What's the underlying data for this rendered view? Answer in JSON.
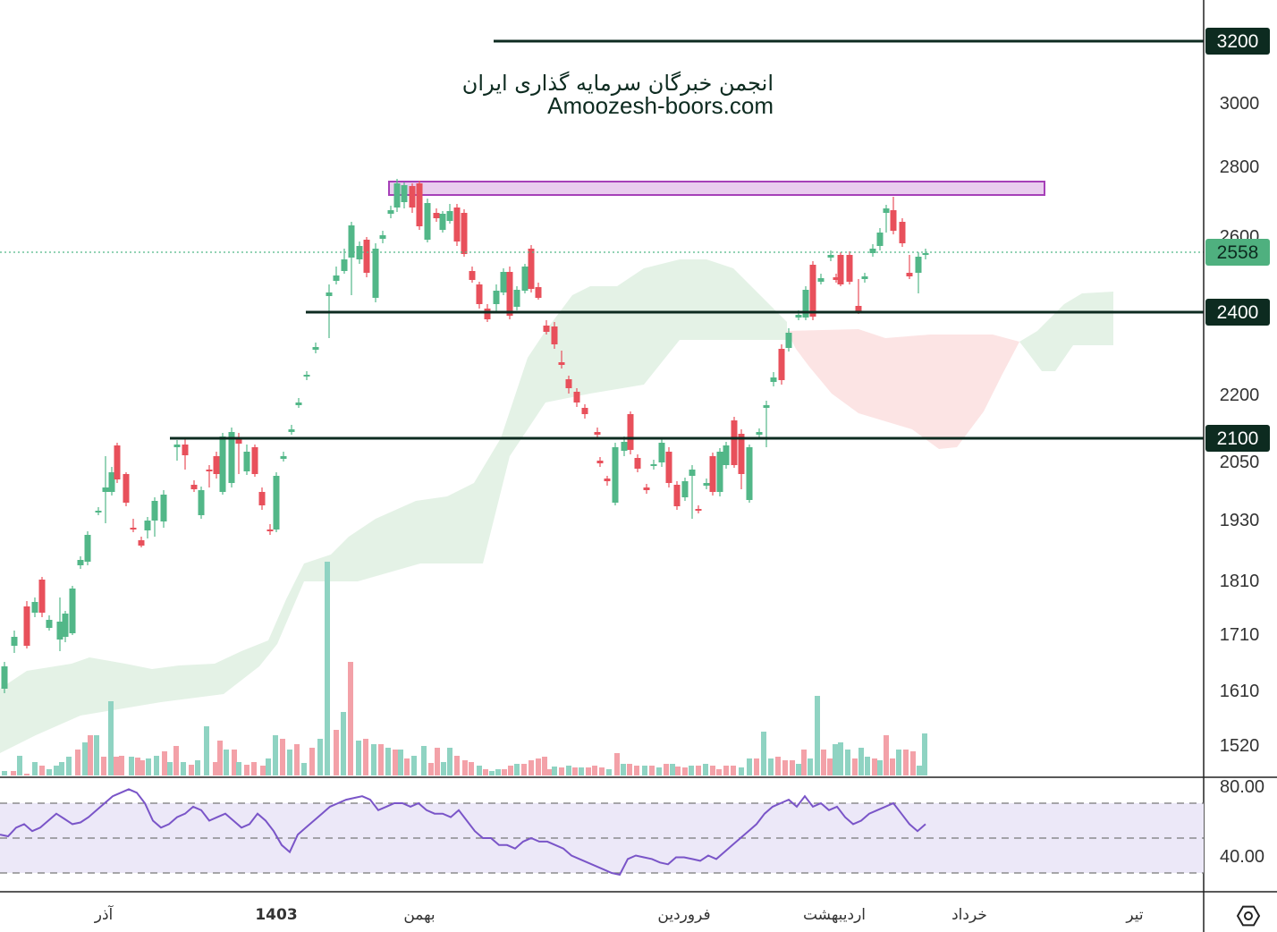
{
  "watermark": {
    "line1": "انجمن خبرگان سرمایه گذاری ایران",
    "line2": "Amoozesh-boors.com"
  },
  "colors": {
    "up": "#52b788",
    "down": "#e8505b",
    "level_line": "#0d2b20",
    "current_badge": "#4fb07f",
    "rsi_line": "#7a55c8",
    "rsi_band": "#ece8f8",
    "resistance_zone": "#e6c8ec",
    "cloud_bull": "#dff0e2",
    "cloud_bear": "#fbe1e1"
  },
  "icons": {
    "settings": "hexagon-gear-icon"
  },
  "chart_data": {
    "type": "candlestick",
    "price_axis_ticks": [
      3200,
      3000,
      2800,
      2600,
      2400,
      2200,
      2050,
      1930,
      1810,
      1710,
      1610,
      1520
    ],
    "price_axis_labels": [
      "3000",
      "2800",
      "2600",
      "2200",
      "2050",
      "1930",
      "1810",
      "1710",
      "1610",
      "1520"
    ],
    "levels": [
      {
        "value": 3200,
        "label": "3200"
      },
      {
        "value": 2400,
        "label": "2400"
      },
      {
        "value": 2100,
        "label": "2100"
      }
    ],
    "current_price": {
      "value": 2558,
      "label": "2558"
    },
    "resistance_zone": {
      "from": 2720,
      "to": 2760
    },
    "time_axis": [
      "آذر",
      "1403",
      "بهمن",
      "فروردین",
      "اردیبهشت",
      "خرداد",
      "تیر"
    ],
    "rsi": {
      "levels": [
        70,
        50,
        30
      ],
      "axis_labels": [
        "80.00",
        "40.00"
      ],
      "values": [
        52,
        51,
        56,
        58,
        54,
        56,
        60,
        64,
        61,
        58,
        59,
        62,
        66,
        70,
        74,
        76,
        78,
        76,
        70,
        60,
        56,
        58,
        62,
        64,
        68,
        66,
        60,
        62,
        64,
        60,
        56,
        58,
        64,
        60,
        54,
        46,
        42,
        52,
        56,
        60,
        64,
        68,
        70,
        72,
        73,
        74,
        72,
        66,
        68,
        70,
        70,
        68,
        70,
        66,
        64,
        64,
        62,
        66,
        60,
        54,
        50,
        50,
        46,
        46,
        44,
        48,
        50,
        48,
        48,
        46,
        44,
        40,
        38,
        36,
        34,
        32,
        30,
        29,
        38,
        40,
        39,
        38,
        36,
        35,
        39,
        39,
        38,
        37,
        40,
        38,
        42,
        46,
        50,
        54,
        58,
        64,
        68,
        70,
        72,
        68,
        74,
        68,
        70,
        66,
        68,
        62,
        58,
        60,
        64,
        66,
        68,
        70,
        64,
        58,
        54,
        58
      ]
    },
    "volume_note": "volume bars colored by candle direction"
  }
}
